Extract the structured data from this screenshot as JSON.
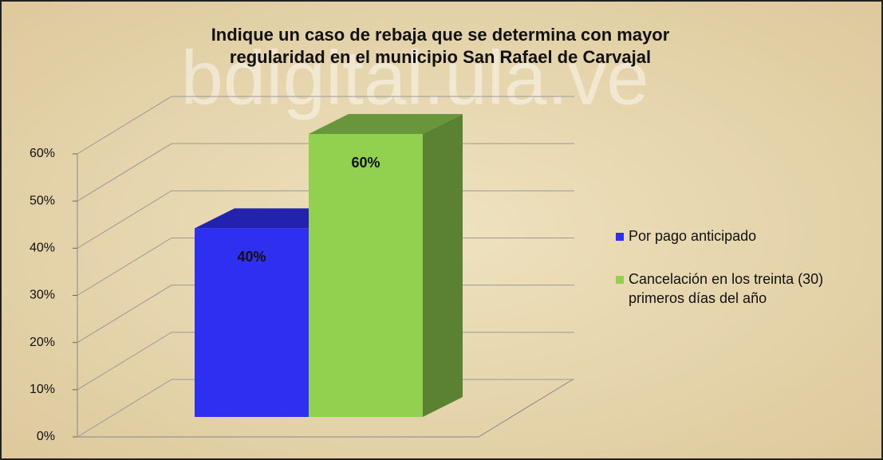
{
  "chart_data": {
    "type": "bar3d",
    "title": [
      "Indique un caso de rebaja  que se determina con mayor",
      "regularidad  en el municipio San Rafael de Carvajal"
    ],
    "watermark": "bdigital.ula.ve",
    "series": [
      {
        "name": "Por pago anticipado",
        "color": "#2f2ff2",
        "values": [
          40
        ],
        "value_labels": [
          "40%"
        ]
      },
      {
        "name": "Cancelación en los treinta (30)  primeros días del año",
        "color": "#92d050",
        "values": [
          60
        ],
        "value_labels": [
          "60%"
        ]
      }
    ],
    "ylim": [
      0,
      60
    ],
    "yticks": [
      {
        "value": 0,
        "label": "0%"
      },
      {
        "value": 10,
        "label": "10%"
      },
      {
        "value": 20,
        "label": "20%"
      },
      {
        "value": 30,
        "label": "30%"
      },
      {
        "value": 40,
        "label": "40%"
      },
      {
        "value": 50,
        "label": "50%"
      },
      {
        "value": 60,
        "label": "60%"
      }
    ],
    "grid": true,
    "legend": "right"
  }
}
